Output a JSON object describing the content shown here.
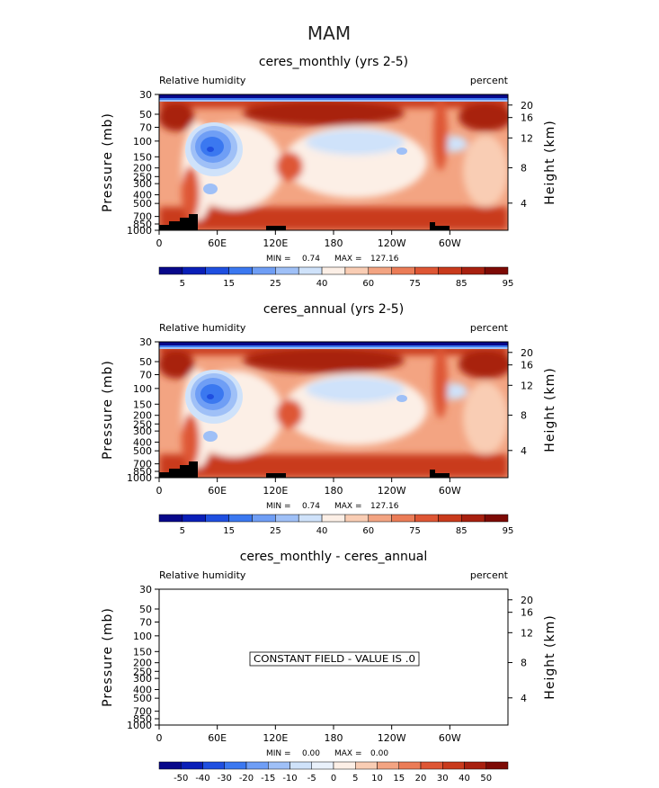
{
  "season_title": "MAM",
  "colors": {
    "cb_rh": [
      "#08088a",
      "#0a1fb8",
      "#1f4fe0",
      "#3b78f0",
      "#6f9ef5",
      "#9fc0f7",
      "#cfe2fa",
      "#fcefe6",
      "#f9cdb4",
      "#f3a482",
      "#eb7c57",
      "#de5634",
      "#c93a1c",
      "#a8200f",
      "#7d0a05"
    ],
    "cb_diff": [
      "#08088a",
      "#0a1fb8",
      "#1f4fe0",
      "#3b78f0",
      "#6f9ef5",
      "#9fc0f7",
      "#cfe2fa",
      "#e9f1fb",
      "#fcefe6",
      "#f9cdb4",
      "#f3a482",
      "#eb7c57",
      "#de5634",
      "#c93a1c",
      "#a8200f",
      "#7d0a05"
    ]
  },
  "chart_data": [
    {
      "type": "heatmap",
      "title": "ceres_monthly (yrs 2-5)",
      "left_label": "Relative humidity",
      "right_label": "percent",
      "ylabel": "Pressure (mb)",
      "y2label": "Height (km)",
      "x_ticks": [
        "0",
        "60E",
        "120E",
        "180",
        "120W",
        "60W"
      ],
      "x_tick_values": [
        0,
        60,
        120,
        180,
        240,
        300
      ],
      "xlim": [
        0,
        360
      ],
      "y_ticks": [
        "30",
        "50",
        "70",
        "100",
        "150",
        "200",
        "250",
        "300",
        "400",
        "500",
        "700",
        "850",
        "1000"
      ],
      "y_tick_values": [
        30,
        50,
        70,
        100,
        150,
        200,
        250,
        300,
        400,
        500,
        700,
        850,
        1000
      ],
      "ylim": [
        1000,
        30
      ],
      "y_scale": "log",
      "y2_ticks": [
        "20",
        "16",
        "12",
        "8",
        "4"
      ],
      "stats": {
        "min_label": "MIN =",
        "min": "0.74",
        "max_label": "MAX =",
        "max": "127.16"
      },
      "colorbar_labels": [
        "5",
        "15",
        "25",
        "40",
        "60",
        "75",
        "85",
        "95"
      ]
    },
    {
      "type": "heatmap",
      "title": "ceres_annual (yrs 2-5)",
      "left_label": "Relative humidity",
      "right_label": "percent",
      "ylabel": "Pressure (mb)",
      "y2label": "Height (km)",
      "x_ticks": [
        "0",
        "60E",
        "120E",
        "180",
        "120W",
        "60W"
      ],
      "x_tick_values": [
        0,
        60,
        120,
        180,
        240,
        300
      ],
      "xlim": [
        0,
        360
      ],
      "y_ticks": [
        "30",
        "50",
        "70",
        "100",
        "150",
        "200",
        "250",
        "300",
        "400",
        "500",
        "700",
        "850",
        "1000"
      ],
      "y_tick_values": [
        30,
        50,
        70,
        100,
        150,
        200,
        250,
        300,
        400,
        500,
        700,
        850,
        1000
      ],
      "ylim": [
        1000,
        30
      ],
      "y_scale": "log",
      "y2_ticks": [
        "20",
        "16",
        "12",
        "8",
        "4"
      ],
      "stats": {
        "min_label": "MIN =",
        "min": "0.74",
        "max_label": "MAX =",
        "max": "127.16"
      },
      "colorbar_labels": [
        "5",
        "15",
        "25",
        "40",
        "60",
        "75",
        "85",
        "95"
      ]
    },
    {
      "type": "heatmap",
      "title": "ceres_monthly - ceres_annual",
      "left_label": "Relative humidity",
      "right_label": "percent",
      "ylabel": "Pressure (mb)",
      "y2label": "Height (km)",
      "x_ticks": [
        "0",
        "60E",
        "120E",
        "180",
        "120W",
        "60W"
      ],
      "x_tick_values": [
        0,
        60,
        120,
        180,
        240,
        300
      ],
      "xlim": [
        0,
        360
      ],
      "y_ticks": [
        "30",
        "50",
        "70",
        "100",
        "150",
        "200",
        "250",
        "300",
        "400",
        "500",
        "700",
        "850",
        "1000"
      ],
      "y_tick_values": [
        30,
        50,
        70,
        100,
        150,
        200,
        250,
        300,
        400,
        500,
        700,
        850,
        1000
      ],
      "ylim": [
        1000,
        30
      ],
      "y_scale": "log",
      "y2_ticks": [
        "20",
        "16",
        "12",
        "8",
        "4"
      ],
      "stats": {
        "min_label": "MIN =",
        "min": "0.00",
        "max_label": "MAX =",
        "max": "0.00"
      },
      "annotation": "CONSTANT FIELD - VALUE IS .0",
      "colorbar_labels": [
        "-50",
        "-40",
        "-30",
        "-20",
        "-15",
        "-10",
        "-5",
        "0",
        "5",
        "10",
        "15",
        "20",
        "30",
        "40",
        "50"
      ]
    }
  ]
}
